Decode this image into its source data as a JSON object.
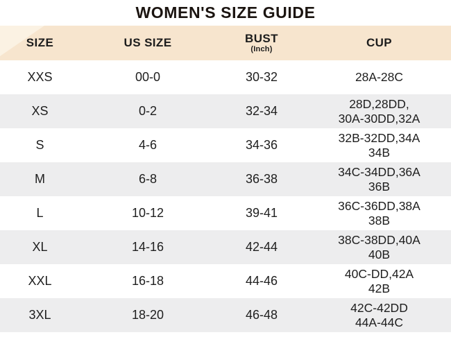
{
  "title": "WOMEN'S SIZE GUIDE",
  "columns": [
    {
      "label": "SIZE"
    },
    {
      "label": "US SIZE"
    },
    {
      "label": "BUST",
      "sub": "(Inch)"
    },
    {
      "label": "CUP"
    }
  ],
  "rows": [
    {
      "size": "XXS",
      "us_size": "00-0",
      "bust": "30-32",
      "cup": "28A-28C"
    },
    {
      "size": "XS",
      "us_size": "0-2",
      "bust": "32-34",
      "cup": "28D,28DD,\n30A-30DD,32A"
    },
    {
      "size": "S",
      "us_size": "4-6",
      "bust": "34-36",
      "cup": "32B-32DD,34A\n34B"
    },
    {
      "size": "M",
      "us_size": "6-8",
      "bust": "36-38",
      "cup": "34C-34DD,36A\n36B"
    },
    {
      "size": "L",
      "us_size": "10-12",
      "bust": "39-41",
      "cup": "36C-36DD,38A\n38B"
    },
    {
      "size": "XL",
      "us_size": "14-16",
      "bust": "42-44",
      "cup": "38C-38DD,40A\n40B"
    },
    {
      "size": "XXL",
      "us_size": "16-18",
      "bust": "44-46",
      "cup": "40C-DD,42A\n42B"
    },
    {
      "size": "3XL",
      "us_size": "18-20",
      "bust": "46-48",
      "cup": "42C-42DD\n44A-44C"
    }
  ],
  "colors": {
    "header_bg": "#f7e5ce",
    "header_bg_light": "#fbf2e3",
    "row_bg": "#ffffff",
    "row_alt_bg": "#ededee",
    "text": "#1e1e1e",
    "title_text": "#1b1410"
  }
}
